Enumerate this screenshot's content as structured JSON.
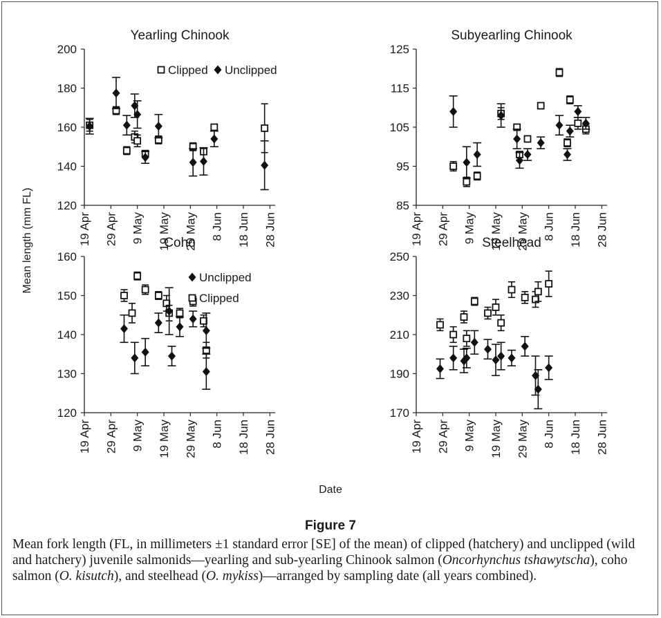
{
  "figure": {
    "label": "Figure 7",
    "caption_parts": [
      "Mean fork length (FL, in millimeters ±1 standard error [SE] of the mean) of clipped (hatchery) and unclipped (wild and hatchery) juvenile salmonids—yearling and sub-yearling Chinook salmon (",
      "Oncorhynchus tshawytscha",
      "), coho salmon (",
      "O. kisutch",
      "), and steelhead (",
      "O. mykiss",
      ")—arranged by sampling date (all years combined)."
    ],
    "y_axis_label": "Mean length (mm FL)",
    "x_axis_label": "Date"
  },
  "chart_data": [
    {
      "type": "scatter",
      "title": "Yearling Chinook",
      "ylim": [
        120,
        200
      ],
      "yticks": [
        120,
        140,
        160,
        180,
        200
      ],
      "x_tick_labels": [
        "19 Apr",
        "29 Apr",
        "9 May",
        "19 May",
        "29 May",
        "8 Jun",
        "18 Jun",
        "28 Jun"
      ],
      "x_range_days": [
        0,
        72
      ],
      "legend": [
        "Clipped",
        "Unclipped"
      ],
      "legend_position": "top-right",
      "series": [
        {
          "name": "Clipped",
          "marker": "open-square",
          "points": [
            {
              "x": "Apr 20",
              "y": 161,
              "err": 3
            },
            {
              "x": "Apr 30",
              "y": 168.5,
              "err": 2
            },
            {
              "x": "May 4",
              "y": 148,
              "err": 2
            },
            {
              "x": "May 7",
              "y": 155,
              "err": 3
            },
            {
              "x": "May 8",
              "y": 153,
              "err": 3
            },
            {
              "x": "May 11",
              "y": 146.5,
              "err": 1.5
            },
            {
              "x": "May 16",
              "y": 153.5,
              "err": 2
            },
            {
              "x": "May 29",
              "y": 150,
              "err": 2
            },
            {
              "x": "Jun 2",
              "y": 147.5,
              "err": 1.5
            },
            {
              "x": "Jun 6",
              "y": 160,
              "err": 1.5
            },
            {
              "x": "Jun 25",
              "y": 159.5,
              "err": 12.5
            }
          ]
        },
        {
          "name": "Unclipped",
          "marker": "filled-diamond",
          "points": [
            {
              "x": "Apr 20",
              "y": 160.5,
              "err": 4
            },
            {
              "x": "Apr 30",
              "y": 177.5,
              "err": 8
            },
            {
              "x": "May 4",
              "y": 161,
              "err": 5
            },
            {
              "x": "May 7",
              "y": 171,
              "err": 6
            },
            {
              "x": "May 8",
              "y": 166.5,
              "err": 7
            },
            {
              "x": "May 11",
              "y": 144.5,
              "err": 3
            },
            {
              "x": "May 16",
              "y": 160.5,
              "err": 6
            },
            {
              "x": "May 29",
              "y": 142,
              "err": 7
            },
            {
              "x": "Jun 2",
              "y": 142.5,
              "err": 7
            },
            {
              "x": "Jun 6",
              "y": 154,
              "err": 4
            },
            {
              "x": "Jun 25",
              "y": 140.5,
              "err": 12.5
            }
          ]
        }
      ]
    },
    {
      "type": "scatter",
      "title": "Subyearling Chinook",
      "ylim": [
        85,
        125
      ],
      "yticks": [
        85,
        95,
        105,
        115,
        125
      ],
      "x_tick_labels": [
        "19 Apr",
        "29 Apr",
        "9 May",
        "19 May",
        "29 May",
        "8 Jun",
        "18 Jun",
        "28 Jun"
      ],
      "x_range_days": [
        0,
        72
      ],
      "legend": [],
      "series": [
        {
          "name": "Clipped",
          "marker": "open-square",
          "points": [
            {
              "x": "May 2",
              "y": 95,
              "err": 1.2
            },
            {
              "x": "May 7",
              "y": 91,
              "err": 1.2
            },
            {
              "x": "May 11",
              "y": 92.5,
              "err": 1
            },
            {
              "x": "May 20",
              "y": 108.5,
              "err": 1.5
            },
            {
              "x": "May 26",
              "y": 105,
              "err": 0.8
            },
            {
              "x": "May 27",
              "y": 98,
              "err": 0.8
            },
            {
              "x": "May 30",
              "y": 102,
              "err": 0.8
            },
            {
              "x": "Jun 4",
              "y": 110.5,
              "err": 0.8
            },
            {
              "x": "Jun 11",
              "y": 119,
              "err": 1
            },
            {
              "x": "Jun 14",
              "y": 101,
              "err": 1
            },
            {
              "x": "Jun 15",
              "y": 112,
              "err": 1
            },
            {
              "x": "Jun 18",
              "y": 106,
              "err": 1.5
            },
            {
              "x": "Jun 21",
              "y": 104.5,
              "err": 1.2
            }
          ]
        },
        {
          "name": "Unclipped",
          "marker": "filled-diamond",
          "points": [
            {
              "x": "May 2",
              "y": 109,
              "err": 4
            },
            {
              "x": "May 7",
              "y": 96,
              "err": 4
            },
            {
              "x": "May 11",
              "y": 98,
              "err": 3
            },
            {
              "x": "May 20",
              "y": 108,
              "err": 3
            },
            {
              "x": "May 26",
              "y": 102,
              "err": 2.5
            },
            {
              "x": "May 27",
              "y": 96.5,
              "err": 2
            },
            {
              "x": "May 30",
              "y": 98,
              "err": 1.5
            },
            {
              "x": "Jun 4",
              "y": 101,
              "err": 1.5
            },
            {
              "x": "Jun 11",
              "y": 105.5,
              "err": 2.5
            },
            {
              "x": "Jun 14",
              "y": 98,
              "err": 1.5
            },
            {
              "x": "Jun 15",
              "y": 104,
              "err": 1.5
            },
            {
              "x": "Jun 18",
              "y": 109,
              "err": 1.5
            },
            {
              "x": "Jun 21",
              "y": 106,
              "err": 1.5
            }
          ]
        }
      ]
    },
    {
      "type": "scatter",
      "title": "Coho",
      "ylim": [
        120,
        160
      ],
      "yticks": [
        120,
        130,
        140,
        150,
        160
      ],
      "x_tick_labels": [
        "19 Apr",
        "29 Apr",
        "9 May",
        "19 May",
        "29 May",
        "8 Jun",
        "18 Jun",
        "28 Jun"
      ],
      "x_range_days": [
        0,
        72
      ],
      "legend": [
        "Unclipped",
        "Clipped"
      ],
      "legend_position": "top-right",
      "series": [
        {
          "name": "Clipped",
          "marker": "open-square",
          "points": [
            {
              "x": "May 3",
              "y": 150,
              "err": 1.5
            },
            {
              "x": "May 6",
              "y": 145.5,
              "err": 2.5
            },
            {
              "x": "May 8",
              "y": 155,
              "err": 1
            },
            {
              "x": "May 11",
              "y": 151.5,
              "err": 1.2
            },
            {
              "x": "May 16",
              "y": 150,
              "err": 1
            },
            {
              "x": "May 19",
              "y": 148,
              "err": 2
            },
            {
              "x": "May 20",
              "y": 145.5,
              "err": 2
            },
            {
              "x": "May 24",
              "y": 145.5,
              "err": 1.2
            },
            {
              "x": "May 29",
              "y": 148.5,
              "err": 1.2
            },
            {
              "x": "Jun 2",
              "y": 143.5,
              "err": 1.5
            },
            {
              "x": "Jun 3",
              "y": 136,
              "err": 2
            }
          ]
        },
        {
          "name": "Unclipped",
          "marker": "filled-diamond",
          "points": [
            {
              "x": "May 3",
              "y": 141.5,
              "err": 3.5
            },
            {
              "x": "May 7",
              "y": 134,
              "err": 4
            },
            {
              "x": "May 11",
              "y": 135.5,
              "err": 3.5
            },
            {
              "x": "May 16",
              "y": 143,
              "err": 2.5
            },
            {
              "x": "May 20",
              "y": 146,
              "err": 6
            },
            {
              "x": "May 21",
              "y": 134.5,
              "err": 2.5
            },
            {
              "x": "May 24",
              "y": 142,
              "err": 2.5
            },
            {
              "x": "May 29",
              "y": 144,
              "err": 2
            },
            {
              "x": "Jun 3",
              "y": 141,
              "err": 4.5
            },
            {
              "x": "Jun 3",
              "y": 130.5,
              "err": 4.5
            }
          ]
        }
      ]
    },
    {
      "type": "scatter",
      "title": "Steelhead",
      "ylim": [
        170,
        250
      ],
      "yticks": [
        170,
        190,
        210,
        230,
        250
      ],
      "x_tick_labels": [
        "19 Apr",
        "29 Apr",
        "9 May",
        "19 May",
        "29 May",
        "8 Jun",
        "18 Jun",
        "28 Jun"
      ],
      "x_range_days": [
        0,
        72
      ],
      "legend": [],
      "series": [
        {
          "name": "Clipped",
          "marker": "open-square",
          "points": [
            {
              "x": "Apr 27",
              "y": 215,
              "err": 3
            },
            {
              "x": "May 2",
              "y": 210,
              "err": 4
            },
            {
              "x": "May 6",
              "y": 219,
              "err": 3
            },
            {
              "x": "May 7",
              "y": 208,
              "err": 4
            },
            {
              "x": "May 10",
              "y": 227,
              "err": 2
            },
            {
              "x": "May 15",
              "y": 221,
              "err": 3
            },
            {
              "x": "May 18",
              "y": 224,
              "err": 4
            },
            {
              "x": "May 20",
              "y": 216,
              "err": 4
            },
            {
              "x": "May 24",
              "y": 233,
              "err": 4
            },
            {
              "x": "May 29",
              "y": 229,
              "err": 3
            },
            {
              "x": "Jun 2",
              "y": 228,
              "err": 4
            },
            {
              "x": "Jun 3",
              "y": 232,
              "err": 5
            },
            {
              "x": "Jun 7",
              "y": 236,
              "err": 6.5
            }
          ]
        },
        {
          "name": "Unclipped",
          "marker": "filled-diamond",
          "points": [
            {
              "x": "Apr 27",
              "y": 192.5,
              "err": 5
            },
            {
              "x": "May 2",
              "y": 198,
              "err": 6
            },
            {
              "x": "May 6",
              "y": 196.5,
              "err": 6
            },
            {
              "x": "May 7",
              "y": 198,
              "err": 5
            },
            {
              "x": "May 10",
              "y": 206,
              "err": 6
            },
            {
              "x": "May 15",
              "y": 202.5,
              "err": 5
            },
            {
              "x": "May 18",
              "y": 197,
              "err": 8
            },
            {
              "x": "May 20",
              "y": 199,
              "err": 7
            },
            {
              "x": "May 24",
              "y": 198,
              "err": 4
            },
            {
              "x": "May 29",
              "y": 204,
              "err": 5
            },
            {
              "x": "Jun 2",
              "y": 189,
              "err": 10
            },
            {
              "x": "Jun 3",
              "y": 182,
              "err": 10
            },
            {
              "x": "Jun 7",
              "y": 193,
              "err": 6
            }
          ]
        }
      ]
    }
  ]
}
